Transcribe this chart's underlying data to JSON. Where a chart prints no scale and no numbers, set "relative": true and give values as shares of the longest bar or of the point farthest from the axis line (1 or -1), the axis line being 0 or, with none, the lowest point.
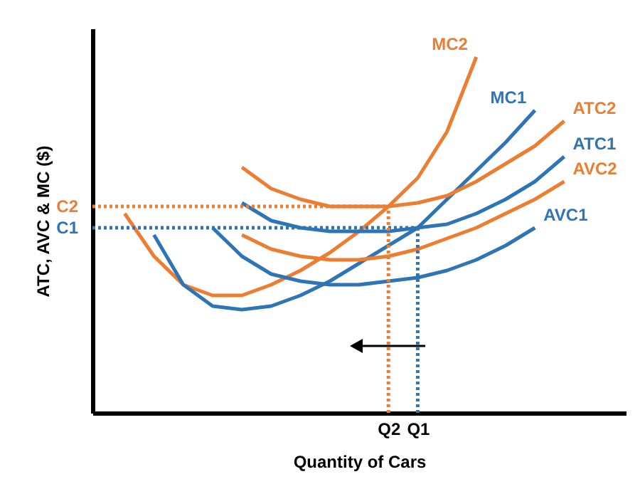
{
  "chart_data": {
    "type": "line",
    "relative": true,
    "xlabel": "Quantity of Cars",
    "ylabel": "ATC, AVC  & MC ($)",
    "legend": false,
    "marker": "none",
    "line_style": "solid",
    "grid": false,
    "categories": [
      null,
      null,
      null,
      null,
      null,
      null,
      null,
      null,
      null,
      null,
      "Q2",
      "Q1",
      null,
      null,
      null,
      null,
      null,
      null,
      null
    ],
    "series": [
      {
        "name": "MC2",
        "color": "#ed7d31",
        "values": [
          null,
          0.56,
          0.44,
          0.36,
          0.33,
          0.33,
          0.36,
          0.4,
          0.45,
          0.51,
          0.58,
          0.66,
          0.79,
          1,
          null,
          null,
          null,
          null,
          null
        ]
      },
      {
        "name": "MC1",
        "color": "#2e75b6",
        "values": [
          null,
          null,
          0.5,
          0.36,
          0.3,
          0.29,
          0.3,
          0.33,
          0.37,
          0.42,
          0.47,
          0.52,
          0.6,
          0.68,
          0.76,
          0.85,
          null,
          null,
          null
        ]
      },
      {
        "name": "ATC2",
        "color": "#ed7d31",
        "values": [
          null,
          null,
          null,
          null,
          null,
          0.69,
          0.63,
          0.6,
          0.58,
          0.58,
          0.58,
          0.59,
          0.61,
          0.65,
          0.7,
          0.75,
          0.82,
          null,
          null
        ]
      },
      {
        "name": "ATC1",
        "color": "#2e75b6",
        "values": [
          null,
          null,
          null,
          null,
          null,
          0.59,
          0.54,
          0.52,
          0.51,
          0.51,
          0.51,
          0.52,
          0.53,
          0.56,
          0.6,
          0.65,
          0.72,
          null,
          null
        ]
      },
      {
        "name": "AVC2",
        "color": "#ed7d31",
        "values": [
          null,
          null,
          null,
          null,
          null,
          0.5,
          0.46,
          0.44,
          0.43,
          0.43,
          0.44,
          0.46,
          0.49,
          0.52,
          0.56,
          0.6,
          0.65,
          null,
          null
        ]
      },
      {
        "name": "AVC1",
        "color": "#2e75b6",
        "values": [
          null,
          null,
          null,
          null,
          0.52,
          0.44,
          0.39,
          0.37,
          0.36,
          0.36,
          0.37,
          0.38,
          0.4,
          0.43,
          0.47,
          0.52,
          null,
          null,
          null
        ]
      }
    ],
    "ref_lines": [
      {
        "axis": "y",
        "value": 0.58,
        "label": "C2",
        "color": "#ed7d31",
        "line_style": "dotted"
      },
      {
        "axis": "y",
        "value": 0.52,
        "label": "C1",
        "color": "#2e75b6",
        "line_style": "dotted"
      },
      {
        "axis": "x",
        "value": "Q2",
        "color": "#ed7d31",
        "line_style": "dotted"
      },
      {
        "axis": "x",
        "value": "Q1",
        "color": "#2e75b6",
        "line_style": "dotted"
      }
    ]
  }
}
